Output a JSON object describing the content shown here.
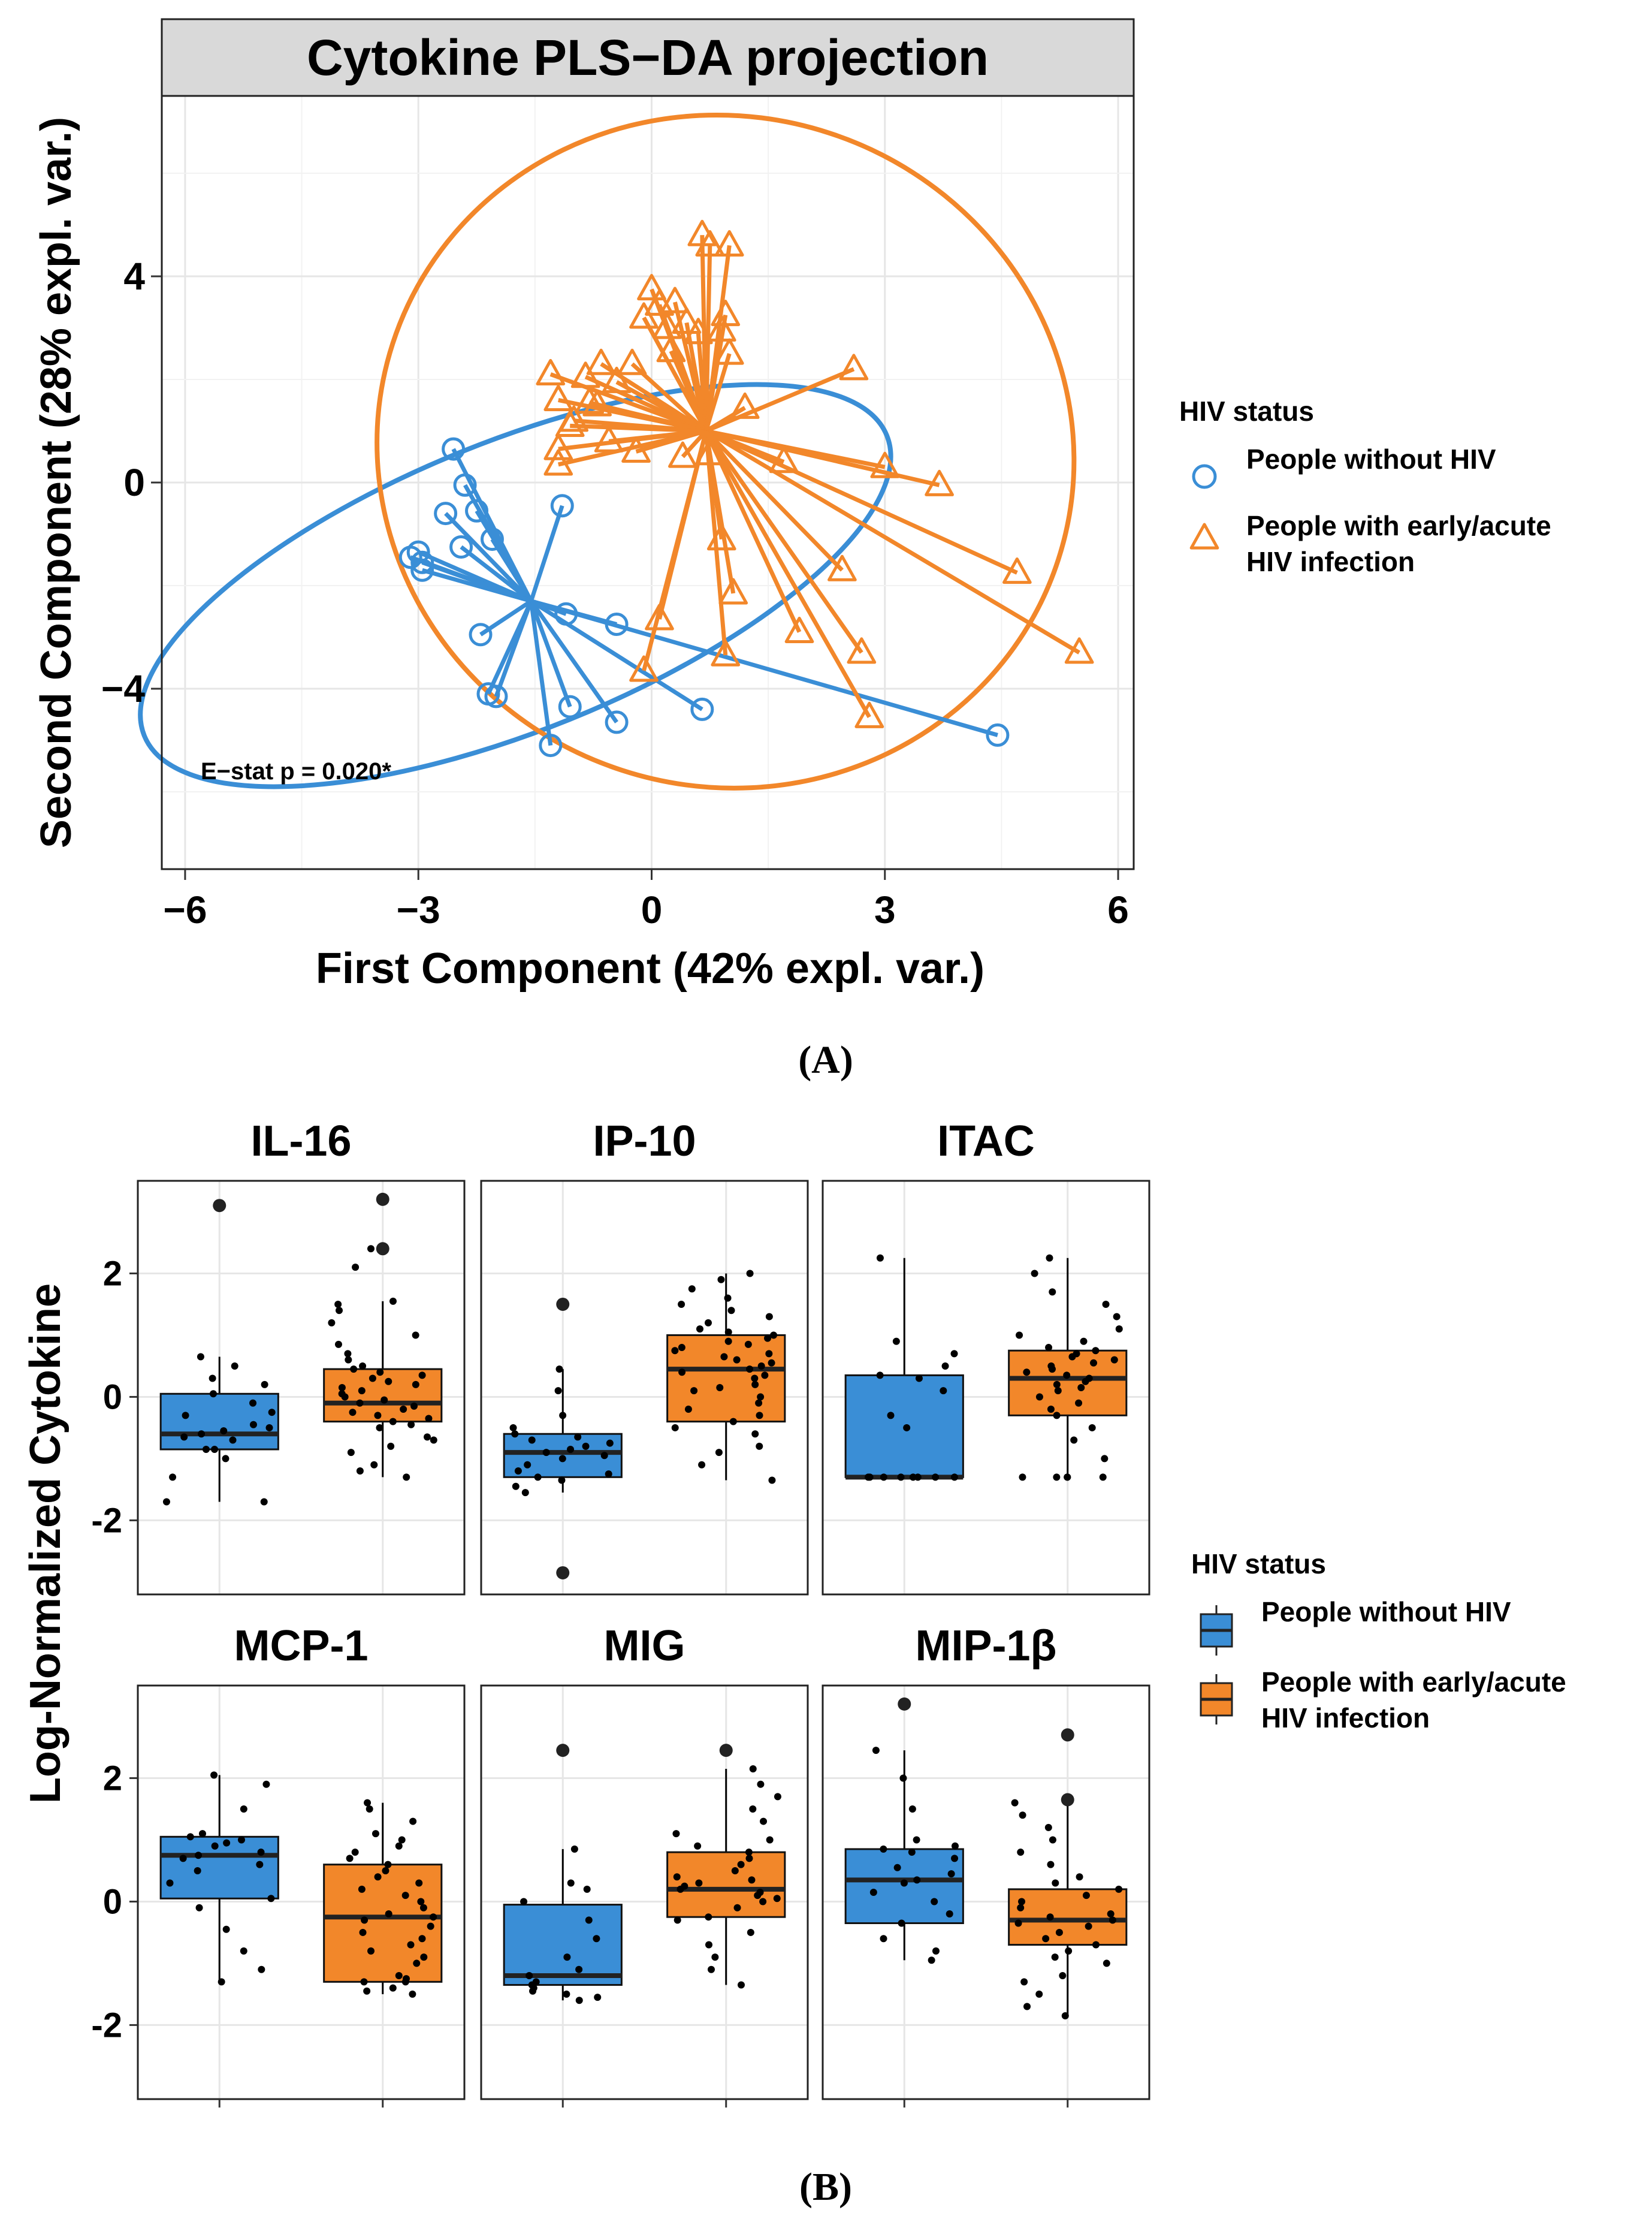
{
  "colors": {
    "no_hiv": "#3a8ed6",
    "hiv": "#f2872a",
    "point": "#000000"
  },
  "panel_a_label": "(A)",
  "panel_b_label": "(B)",
  "legend_a": {
    "title": "HIV status",
    "items": [
      {
        "label_lines": [
          "People without HIV"
        ]
      },
      {
        "label_lines": [
          "People with early/acute",
          "HIV infection"
        ]
      }
    ]
  },
  "legend_b": {
    "title": "HIV status",
    "items": [
      {
        "label_lines": [
          "People without HIV"
        ]
      },
      {
        "label_lines": [
          "People with early/acute",
          "HIV infection"
        ]
      }
    ]
  },
  "chart_data": [
    {
      "type": "scatter",
      "title": "Cytokine PLS−DA projection",
      "xlabel": "First Component (42% expl. var.)",
      "ylabel": "Second Component (28% expl. var.)",
      "xlim": [
        -6.3,
        6.2
      ],
      "ylim": [
        -7.5,
        7.5
      ],
      "xticks": [
        -6,
        -3,
        0,
        3,
        6
      ],
      "xtick_labels": [
        "−6",
        "−3",
        "0",
        "3",
        "6"
      ],
      "yticks": [
        -4,
        0,
        4
      ],
      "ytick_labels": [
        "−4",
        "0",
        "4"
      ],
      "annotation": "E−stat p = 0.020*",
      "series": [
        {
          "name": "People without HIV",
          "marker": "circle",
          "centroid": [
            -1.55,
            -2.3
          ],
          "ellipse": {
            "cx": -1.75,
            "cy": -2.0,
            "rx": 5.15,
            "ry": 2.8,
            "angle_deg": -22
          },
          "points": [
            [
              -2.55,
              0.65
            ],
            [
              -2.4,
              -0.05
            ],
            [
              -2.25,
              -0.55
            ],
            [
              -2.65,
              -0.6
            ],
            [
              -2.05,
              -1.1
            ],
            [
              -2.45,
              -1.25
            ],
            [
              -3.0,
              -1.35
            ],
            [
              -3.1,
              -1.45
            ],
            [
              -2.95,
              -1.55
            ],
            [
              -2.95,
              -1.7
            ],
            [
              -1.15,
              -0.45
            ],
            [
              -1.1,
              -2.55
            ],
            [
              -0.45,
              -2.75
            ],
            [
              -2.2,
              -2.95
            ],
            [
              -2.1,
              -4.1
            ],
            [
              -2.0,
              -4.15
            ],
            [
              -1.05,
              -4.35
            ],
            [
              -0.45,
              -4.65
            ],
            [
              -1.3,
              -5.1
            ],
            [
              0.65,
              -4.4
            ],
            [
              4.45,
              -4.9
            ]
          ]
        },
        {
          "name": "People with early/acute HIV infection",
          "marker": "triangle",
          "centroid": [
            0.7,
            1.0
          ],
          "ellipse": {
            "cx": 0.95,
            "cy": 0.6,
            "rx": 4.5,
            "ry": 6.5,
            "angle_deg": 18
          },
          "points": [
            [
              0.0,
              3.75
            ],
            [
              0.1,
              3.45
            ],
            [
              -0.1,
              3.2
            ],
            [
              0.2,
              3.0
            ],
            [
              0.3,
              3.5
            ],
            [
              0.45,
              3.1
            ],
            [
              0.25,
              2.55
            ],
            [
              0.6,
              2.9
            ],
            [
              0.65,
              4.8
            ],
            [
              0.75,
              4.6
            ],
            [
              1.0,
              4.6
            ],
            [
              0.95,
              3.25
            ],
            [
              0.9,
              2.95
            ],
            [
              1.0,
              2.5
            ],
            [
              -1.3,
              2.1
            ],
            [
              -0.65,
              2.3
            ],
            [
              -0.85,
              2.05
            ],
            [
              -0.25,
              2.3
            ],
            [
              -0.45,
              1.95
            ],
            [
              -1.2,
              1.6
            ],
            [
              -1.0,
              1.2
            ],
            [
              -0.8,
              1.55
            ],
            [
              -0.7,
              1.5
            ],
            [
              -1.05,
              1.1
            ],
            [
              -1.2,
              0.65
            ],
            [
              -1.2,
              0.35
            ],
            [
              -0.55,
              0.8
            ],
            [
              -0.2,
              0.6
            ],
            [
              0.4,
              0.5
            ],
            [
              0.75,
              0.55
            ],
            [
              1.2,
              1.45
            ],
            [
              1.7,
              0.4
            ],
            [
              2.6,
              2.2
            ],
            [
              3.0,
              0.3
            ],
            [
              3.7,
              -0.05
            ],
            [
              4.7,
              -1.75
            ],
            [
              5.5,
              -3.3
            ],
            [
              0.1,
              -2.65
            ],
            [
              0.9,
              -1.1
            ],
            [
              1.05,
              -2.15
            ],
            [
              0.95,
              -3.35
            ],
            [
              1.9,
              -2.9
            ],
            [
              2.45,
              -1.7
            ],
            [
              2.7,
              -3.3
            ],
            [
              2.8,
              -4.55
            ],
            [
              -0.1,
              -3.65
            ]
          ]
        }
      ]
    },
    {
      "type": "box",
      "ylabel": "Log-Normalized Cytokine",
      "ylim": [
        -3.2,
        3.5
      ],
      "yticks": [
        -2,
        0,
        2
      ],
      "ytick_labels": [
        "-2",
        "0",
        "2"
      ],
      "groups": [
        "People without HIV",
        "People with early/acute HIV infection"
      ],
      "panels": [
        {
          "title": "IL-16",
          "boxes": [
            {
              "group": "People without HIV",
              "q1": -0.85,
              "median": -0.6,
              "q3": 0.05,
              "whisker_low": -1.7,
              "whisker_high": 0.65,
              "outliers": [
                3.1
              ],
              "points": [
                -1.7,
                -1.7,
                -1.3,
                -1.0,
                -0.85,
                -0.85,
                -0.7,
                -0.65,
                -0.6,
                -0.55,
                -0.5,
                -0.45,
                -0.3,
                -0.25,
                -0.1,
                0.05,
                0.2,
                0.3,
                0.5,
                0.65
              ]
            },
            {
              "group": "People with early/acute HIV infection",
              "q1": -0.4,
              "median": -0.1,
              "q3": 0.45,
              "whisker_low": -1.3,
              "whisker_high": 1.55,
              "outliers": [
                2.4,
                3.2
              ],
              "points": [
                -1.3,
                -1.2,
                -1.1,
                -0.9,
                -0.8,
                -0.7,
                -0.65,
                -0.5,
                -0.45,
                -0.4,
                -0.35,
                -0.3,
                -0.25,
                -0.2,
                -0.15,
                -0.1,
                -0.05,
                0.0,
                0.05,
                0.1,
                0.15,
                0.2,
                0.25,
                0.3,
                0.35,
                0.4,
                0.45,
                0.5,
                0.6,
                0.7,
                0.85,
                1.0,
                1.2,
                1.4,
                1.5,
                1.55,
                2.1,
                2.4
              ]
            }
          ]
        },
        {
          "title": "IP-10",
          "boxes": [
            {
              "group": "People without HIV",
              "q1": -1.3,
              "median": -0.9,
              "q3": -0.6,
              "whisker_low": -1.55,
              "whisker_high": 0.45,
              "outliers": [
                1.5,
                -2.85
              ],
              "points": [
                -1.55,
                -1.45,
                -1.35,
                -1.3,
                -1.25,
                -1.2,
                -1.1,
                -1.0,
                -0.95,
                -0.9,
                -0.85,
                -0.8,
                -0.75,
                -0.7,
                -0.65,
                -0.6,
                -0.5,
                -0.3,
                0.1,
                0.45
              ]
            },
            {
              "group": "People with early/acute HIV infection",
              "q1": -0.4,
              "median": 0.45,
              "q3": 1.0,
              "whisker_low": -1.35,
              "whisker_high": 2.0,
              "outliers": [],
              "points": [
                -1.35,
                -1.1,
                -0.9,
                -0.8,
                -0.6,
                -0.5,
                -0.4,
                -0.3,
                -0.2,
                -0.1,
                0.0,
                0.1,
                0.15,
                0.2,
                0.3,
                0.35,
                0.4,
                0.45,
                0.5,
                0.55,
                0.6,
                0.65,
                0.7,
                0.75,
                0.8,
                0.85,
                0.9,
                0.95,
                1.0,
                1.05,
                1.1,
                1.2,
                1.3,
                1.4,
                1.5,
                1.6,
                1.75,
                1.9,
                2.0
              ]
            }
          ]
        },
        {
          "title": "ITAC",
          "boxes": [
            {
              "group": "People without HIV",
              "q1": -1.3,
              "median": -1.3,
              "q3": 0.35,
              "whisker_low": -1.3,
              "whisker_high": 2.25,
              "outliers": [],
              "points": [
                -1.3,
                -1.3,
                -1.3,
                -1.3,
                -1.3,
                -1.3,
                -1.3,
                -1.3,
                -0.5,
                -0.3,
                0.1,
                0.3,
                0.35,
                0.5,
                0.7,
                0.9,
                2.25
              ]
            },
            {
              "group": "People with early/acute HIV infection",
              "q1": -0.3,
              "median": 0.3,
              "q3": 0.75,
              "whisker_low": -1.3,
              "whisker_high": 2.25,
              "outliers": [],
              "points": [
                -1.3,
                -1.3,
                -1.3,
                -1.3,
                -1.3,
                -1.0,
                -0.7,
                -0.5,
                -0.3,
                -0.2,
                -0.1,
                0.0,
                0.1,
                0.15,
                0.2,
                0.25,
                0.3,
                0.35,
                0.4,
                0.45,
                0.5,
                0.55,
                0.6,
                0.65,
                0.7,
                0.75,
                0.8,
                0.9,
                1.0,
                1.1,
                1.3,
                1.5,
                1.7,
                2.0,
                2.25
              ]
            }
          ]
        },
        {
          "title": "MCP-1",
          "boxes": [
            {
              "group": "People without HIV",
              "q1": 0.05,
              "median": 0.75,
              "q3": 1.05,
              "whisker_low": -1.3,
              "whisker_high": 2.05,
              "outliers": [],
              "points": [
                -1.3,
                -1.1,
                -0.8,
                -0.45,
                -0.1,
                0.05,
                0.3,
                0.5,
                0.6,
                0.7,
                0.75,
                0.8,
                0.9,
                0.95,
                1.0,
                1.05,
                1.1,
                1.5,
                1.9,
                2.05
              ]
            },
            {
              "group": "People with early/acute HIV infection",
              "q1": -1.3,
              "median": -0.25,
              "q3": 0.6,
              "whisker_low": -1.5,
              "whisker_high": 1.6,
              "outliers": [],
              "points": [
                -1.5,
                -1.45,
                -1.4,
                -1.3,
                -1.3,
                -1.25,
                -1.2,
                -1.0,
                -0.9,
                -0.8,
                -0.7,
                -0.6,
                -0.5,
                -0.4,
                -0.3,
                -0.25,
                -0.2,
                -0.1,
                0.0,
                0.1,
                0.2,
                0.3,
                0.4,
                0.5,
                0.6,
                0.7,
                0.8,
                0.9,
                1.0,
                1.1,
                1.3,
                1.5,
                1.6
              ]
            }
          ]
        },
        {
          "title": "MIG",
          "boxes": [
            {
              "group": "People without HIV",
              "q1": -1.35,
              "median": -1.2,
              "q3": -0.05,
              "whisker_low": -1.6,
              "whisker_high": 0.85,
              "outliers": [
                2.45
              ],
              "points": [
                -1.6,
                -1.55,
                -1.5,
                -1.45,
                -1.4,
                -1.35,
                -1.3,
                -1.2,
                -1.1,
                -0.9,
                -0.6,
                -0.3,
                0.0,
                0.2,
                0.3,
                0.85
              ]
            },
            {
              "group": "People with early/acute HIV infection",
              "q1": -0.25,
              "median": 0.2,
              "q3": 0.8,
              "whisker_low": -1.35,
              "whisker_high": 2.15,
              "outliers": [
                2.45
              ],
              "points": [
                -1.35,
                -1.1,
                -0.9,
                -0.7,
                -0.5,
                -0.3,
                -0.25,
                -0.1,
                0.0,
                0.05,
                0.1,
                0.15,
                0.2,
                0.25,
                0.3,
                0.35,
                0.4,
                0.5,
                0.6,
                0.7,
                0.8,
                0.9,
                1.0,
                1.1,
                1.3,
                1.5,
                1.7,
                1.9,
                2.15
              ]
            }
          ]
        },
        {
          "title": "MIP-1β",
          "boxes": [
            {
              "group": "People without HIV",
              "q1": -0.35,
              "median": 0.35,
              "q3": 0.85,
              "whisker_low": -0.95,
              "whisker_high": 2.45,
              "outliers": [
                3.2
              ],
              "points": [
                -0.95,
                -0.8,
                -0.6,
                -0.35,
                -0.2,
                0.0,
                0.15,
                0.3,
                0.35,
                0.45,
                0.55,
                0.7,
                0.8,
                0.85,
                0.9,
                1.0,
                1.5,
                2.0,
                2.45
              ]
            },
            {
              "group": "People with early/acute HIV infection",
              "q1": -0.7,
              "median": -0.3,
              "q3": 0.2,
              "whisker_low": -1.85,
              "whisker_high": 1.65,
              "outliers": [
                1.65,
                2.7
              ],
              "points": [
                -1.85,
                -1.7,
                -1.5,
                -1.3,
                -1.2,
                -1.0,
                -0.9,
                -0.8,
                -0.7,
                -0.6,
                -0.5,
                -0.4,
                -0.35,
                -0.3,
                -0.25,
                -0.2,
                -0.1,
                0.0,
                0.1,
                0.2,
                0.3,
                0.4,
                0.6,
                0.8,
                1.0,
                1.2,
                1.4,
                1.6
              ]
            }
          ]
        }
      ]
    }
  ]
}
